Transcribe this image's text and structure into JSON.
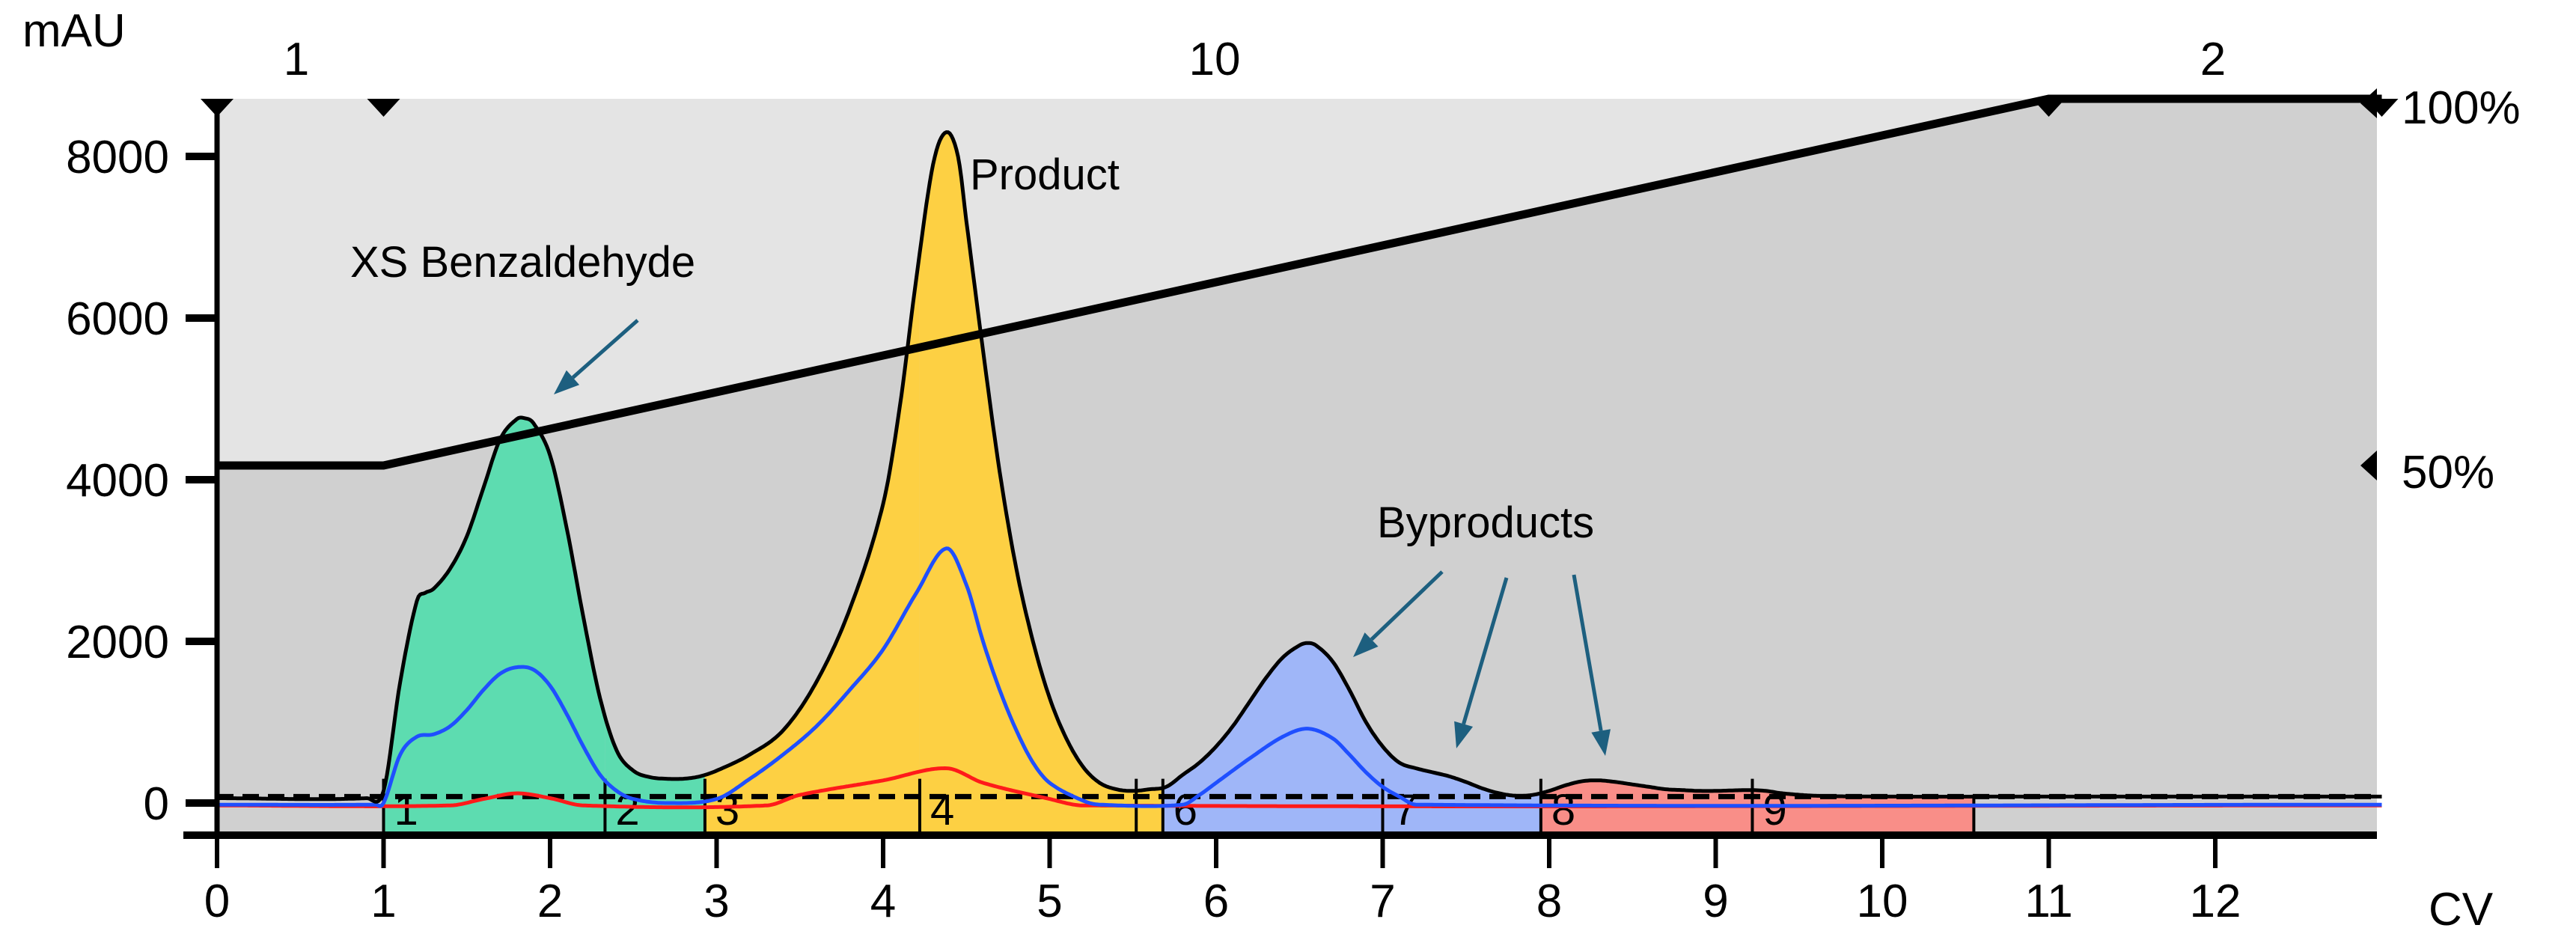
{
  "chart_data": {
    "type": "line",
    "title": "",
    "xlabel": "CV",
    "ylabel": "mAU",
    "xlim": [
      0,
      13
    ],
    "ylim": [
      -400,
      8700
    ],
    "x_ticks": [
      "0",
      "1",
      "2",
      "3",
      "4",
      "5",
      "6",
      "7",
      "8",
      "9",
      "10",
      "11",
      "12"
    ],
    "y_ticks": [
      "0",
      "2000",
      "4000",
      "6000",
      "8000"
    ],
    "right_axis_ticks": [
      "50%",
      "100%"
    ],
    "gradient": {
      "points": [
        [
          0,
          50
        ],
        [
          1,
          50
        ],
        [
          11,
          100
        ],
        [
          13,
          100
        ]
      ],
      "segment_labels": [
        "1",
        "10",
        "2"
      ],
      "color": "#000000"
    },
    "baseline_mAU": 80,
    "series": [
      {
        "color": "#000000",
        "x": [
          0,
          0.9,
          1.0,
          1.1,
          1.2,
          1.25,
          1.3,
          1.4,
          1.5,
          1.6,
          1.7,
          1.8,
          1.85,
          1.9,
          2.0,
          2.1,
          2.2,
          2.3,
          2.4,
          2.5,
          2.6,
          2.7,
          2.8,
          2.9,
          3.0,
          3.2,
          3.4,
          3.6,
          3.8,
          4.0,
          4.1,
          4.2,
          4.3,
          4.38,
          4.45,
          4.5,
          4.6,
          4.7,
          4.8,
          4.9,
          5.0,
          5.1,
          5.2,
          5.3,
          5.4,
          5.5,
          5.6,
          5.7,
          5.8,
          5.9,
          6.0,
          6.1,
          6.2,
          6.3,
          6.4,
          6.5,
          6.55,
          6.6,
          6.7,
          6.8,
          6.9,
          7.0,
          7.1,
          7.2,
          7.3,
          7.4,
          7.5,
          7.6,
          7.7,
          7.8,
          7.9,
          8.0,
          8.1,
          8.2,
          8.3,
          8.4,
          8.5,
          8.6,
          8.7,
          8.8,
          8.9,
          9.0,
          9.2,
          9.3,
          9.4,
          9.6,
          10.0,
          11.0,
          13.0
        ],
        "y": [
          60,
          60,
          150,
          1500,
          2500,
          2600,
          2650,
          2900,
          3300,
          3900,
          4500,
          4750,
          4760,
          4700,
          4300,
          3400,
          2300,
          1300,
          650,
          400,
          320,
          300,
          300,
          330,
          400,
          600,
          900,
          1500,
          2400,
          3700,
          4900,
          6500,
          7900,
          8300,
          8000,
          7200,
          5600,
          4100,
          2900,
          2000,
          1300,
          800,
          450,
          250,
          170,
          150,
          170,
          200,
          350,
          500,
          700,
          950,
          1250,
          1550,
          1800,
          1950,
          1980,
          1950,
          1750,
          1400,
          1000,
          700,
          500,
          430,
          380,
          330,
          260,
          180,
          120,
          90,
          100,
          150,
          220,
          270,
          280,
          260,
          230,
          200,
          170,
          160,
          150,
          150,
          160,
          150,
          120,
          90,
          80,
          80,
          80
        ]
      },
      {
        "color": "#1f4fff",
        "x": [
          0,
          0.95,
          1.0,
          1.1,
          1.2,
          1.3,
          1.4,
          1.5,
          1.6,
          1.7,
          1.8,
          1.9,
          2.0,
          2.1,
          2.2,
          2.3,
          2.4,
          2.5,
          2.7,
          3.0,
          3.2,
          3.4,
          3.6,
          3.8,
          4.0,
          4.2,
          4.38,
          4.5,
          4.6,
          4.7,
          4.8,
          4.9,
          5.0,
          5.2,
          5.3,
          5.8,
          5.9,
          6.0,
          6.2,
          6.4,
          6.55,
          6.7,
          6.8,
          6.9,
          7.0,
          7.1,
          7.2,
          13.0
        ],
        "y": [
          -20,
          -20,
          0,
          600,
          820,
          850,
          950,
          1150,
          1400,
          1600,
          1680,
          1650,
          1450,
          1100,
          700,
          350,
          150,
          50,
          0,
          50,
          300,
          600,
          950,
          1400,
          1900,
          2600,
          3150,
          2700,
          2000,
          1400,
          900,
          500,
          250,
          30,
          -20,
          -20,
          100,
          250,
          550,
          820,
          920,
          800,
          600,
          380,
          200,
          80,
          -20,
          -20
        ]
      },
      {
        "color": "#ff1a1a",
        "x": [
          0,
          1.4,
          1.6,
          1.8,
          2.0,
          2.2,
          3.3,
          3.5,
          4.0,
          4.38,
          4.6,
          5.0,
          5.2,
          13.0
        ],
        "y": [
          -30,
          -30,
          50,
          120,
          60,
          -30,
          -30,
          100,
          280,
          430,
          250,
          50,
          -30,
          -30
        ]
      }
    ],
    "fractions": [
      {
        "label": "1",
        "start": 1.0,
        "end": 2.33,
        "color": "#5ddcb0"
      },
      {
        "label": "2",
        "start": 2.33,
        "end": 2.93,
        "color": "#5ddcb0"
      },
      {
        "label": "3",
        "start": 2.93,
        "end": 4.22,
        "color": "#fdd043"
      },
      {
        "label": "4",
        "start": 4.22,
        "end": 5.52,
        "color": "#fdd043"
      },
      {
        "label": "",
        "start": 5.52,
        "end": 5.68,
        "color": "#fdd043"
      },
      {
        "label": "6",
        "start": 5.68,
        "end": 7.0,
        "color": "#9fb6f8"
      },
      {
        "label": "7",
        "start": 7.0,
        "end": 7.95,
        "color": "#9fb6f8"
      },
      {
        "label": "8",
        "start": 7.95,
        "end": 9.22,
        "color": "#f98e88"
      },
      {
        "label": "9",
        "start": 9.22,
        "end": 10.55,
        "color": "#f98e88"
      }
    ],
    "annotations": {
      "benzaldehyde": "XS Benzaldehyde",
      "product": "Product",
      "byproducts": "Byproducts",
      "arrow_color": "#1d5f7f"
    },
    "background": {
      "above_gradient": "#e4e4e4",
      "below_gradient": "#d0d0d0"
    }
  }
}
